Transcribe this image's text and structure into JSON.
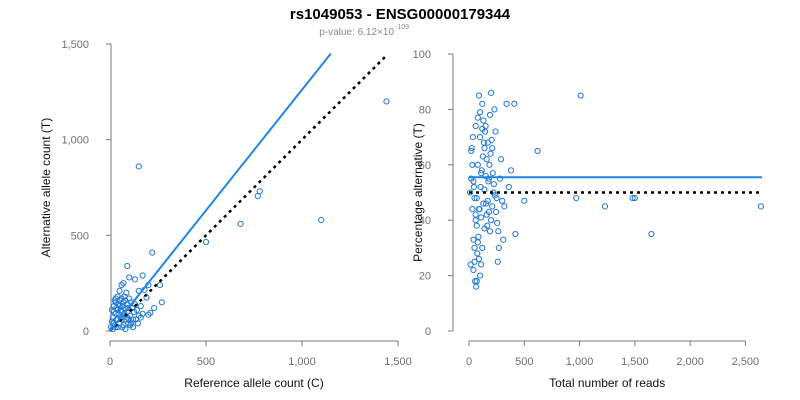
{
  "title_main": "rs1049053 - ENSG00000179344",
  "subtitle": {
    "prefix": "p-value: 6.12×10",
    "exponent": "-109"
  },
  "chart_data": [
    {
      "type": "scatter",
      "xlabel": "Reference allele count (C)",
      "ylabel": "Alternative allele count (T)",
      "xlim": [
        0,
        1500
      ],
      "ylim": [
        0,
        1500
      ],
      "x_ticks": [
        0,
        500,
        1000,
        1500
      ],
      "x_tick_labels": [
        "0",
        "500",
        "1,000",
        "1,500"
      ],
      "y_ticks": [
        0,
        500,
        1000,
        1500
      ],
      "y_tick_labels": [
        "0",
        "500",
        "1,000",
        "1,500"
      ],
      "grid": false,
      "points_color": "#1f78d8",
      "fit_line": {
        "x": [
          0,
          1150
        ],
        "y": [
          0,
          1450
        ],
        "color": "#1f86e6"
      },
      "reference_line": {
        "x": [
          0,
          1440
        ],
        "y": [
          0,
          1440
        ],
        "color": "#000000",
        "style": "dotted"
      },
      "points": [
        [
          1440,
          1200
        ],
        [
          1100,
          580
        ],
        [
          780,
          730
        ],
        [
          770,
          705
        ],
        [
          680,
          560
        ],
        [
          500,
          465
        ],
        [
          150,
          860
        ],
        [
          220,
          410
        ],
        [
          260,
          240
        ],
        [
          270,
          150
        ],
        [
          230,
          120
        ],
        [
          210,
          95
        ],
        [
          200,
          85
        ],
        [
          200,
          240
        ],
        [
          190,
          175
        ],
        [
          170,
          290
        ],
        [
          180,
          215
        ],
        [
          150,
          210
        ],
        [
          130,
          270
        ],
        [
          100,
          280
        ],
        [
          90,
          340
        ],
        [
          70,
          250
        ],
        [
          60,
          240
        ],
        [
          50,
          210
        ],
        [
          110,
          150
        ],
        [
          90,
          140
        ],
        [
          80,
          160
        ],
        [
          60,
          170
        ],
        [
          40,
          180
        ],
        [
          30,
          150
        ],
        [
          20,
          100
        ],
        [
          10,
          50
        ],
        [
          5,
          20
        ],
        [
          15,
          10
        ],
        [
          25,
          30
        ],
        [
          35,
          60
        ],
        [
          45,
          90
        ],
        [
          55,
          110
        ],
        [
          65,
          130
        ],
        [
          75,
          90
        ],
        [
          85,
          60
        ],
        [
          95,
          40
        ],
        [
          105,
          80
        ],
        [
          115,
          120
        ],
        [
          125,
          100
        ],
        [
          135,
          60
        ],
        [
          145,
          40
        ],
        [
          160,
          130
        ],
        [
          170,
          90
        ],
        [
          40,
          20
        ],
        [
          50,
          40
        ],
        [
          60,
          60
        ],
        [
          70,
          30
        ],
        [
          80,
          10
        ],
        [
          90,
          100
        ],
        [
          100,
          60
        ],
        [
          30,
          90
        ],
        [
          20,
          130
        ],
        [
          15,
          70
        ],
        [
          25,
          160
        ],
        [
          35,
          120
        ],
        [
          45,
          140
        ],
        [
          55,
          70
        ],
        [
          65,
          20
        ],
        [
          75,
          180
        ],
        [
          85,
          200
        ],
        [
          95,
          120
        ],
        [
          105,
          30
        ],
        [
          120,
          60
        ],
        [
          140,
          110
        ],
        [
          160,
          70
        ],
        [
          20,
          40
        ],
        [
          10,
          110
        ],
        [
          30,
          20
        ],
        [
          40,
          60
        ],
        [
          50,
          130
        ],
        [
          60,
          100
        ],
        [
          70,
          150
        ],
        [
          80,
          120
        ],
        [
          90,
          70
        ],
        [
          100,
          170
        ],
        [
          110,
          40
        ],
        [
          120,
          20
        ],
        [
          130,
          140
        ],
        [
          150,
          80
        ],
        [
          30,
          170
        ],
        [
          40,
          110
        ],
        [
          50,
          160
        ]
      ]
    },
    {
      "type": "scatter",
      "xlabel": "Total number of reads",
      "ylabel": "Percentage alternative (T)",
      "xlim": [
        0,
        2650
      ],
      "ylim": [
        0,
        100
      ],
      "x_ticks": [
        0,
        500,
        1000,
        1500,
        2000,
        2500
      ],
      "x_tick_labels": [
        "0",
        "500",
        "1,000",
        "1,500",
        "2,000",
        "2,500"
      ],
      "y_ticks": [
        0,
        20,
        40,
        60,
        80,
        100
      ],
      "y_tick_labels": [
        "0",
        "20",
        "40",
        "60",
        "80",
        "100"
      ],
      "grid": false,
      "points_color": "#1f78d8",
      "fit_line": {
        "x": [
          0,
          2650
        ],
        "y": [
          55.5,
          55.5
        ],
        "color": "#1f86e6"
      },
      "reference_line": {
        "x": [
          0,
          2650
        ],
        "y": [
          50,
          50
        ],
        "color": "#000000",
        "style": "dotted"
      },
      "points": [
        [
          2640,
          45
        ],
        [
          1650,
          35
        ],
        [
          1500,
          48
        ],
        [
          1480,
          48
        ],
        [
          1230,
          45
        ],
        [
          1010,
          85
        ],
        [
          970,
          48
        ],
        [
          620,
          65
        ],
        [
          500,
          47
        ],
        [
          420,
          35
        ],
        [
          410,
          82
        ],
        [
          380,
          58
        ],
        [
          360,
          52
        ],
        [
          340,
          82
        ],
        [
          320,
          45
        ],
        [
          310,
          33
        ],
        [
          300,
          47
        ],
        [
          290,
          62
        ],
        [
          280,
          55
        ],
        [
          270,
          30
        ],
        [
          260,
          25
        ],
        [
          250,
          48
        ],
        [
          240,
          72
        ],
        [
          230,
          80
        ],
        [
          220,
          50
        ],
        [
          210,
          66
        ],
        [
          200,
          86
        ],
        [
          190,
          78
        ],
        [
          180,
          55
        ],
        [
          170,
          68
        ],
        [
          160,
          42
        ],
        [
          150,
          74
        ],
        [
          140,
          37
        ],
        [
          130,
          76
        ],
        [
          120,
          82
        ],
        [
          110,
          57
        ],
        [
          100,
          70
        ],
        [
          90,
          85
        ],
        [
          80,
          60
        ],
        [
          70,
          48
        ],
        [
          60,
          40
        ],
        [
          50,
          30
        ],
        [
          40,
          22
        ],
        [
          30,
          44
        ],
        [
          20,
          55
        ],
        [
          10,
          50
        ],
        [
          15,
          24
        ],
        [
          25,
          66
        ],
        [
          35,
          70
        ],
        [
          45,
          52
        ],
        [
          55,
          18
        ],
        [
          65,
          16
        ],
        [
          75,
          28
        ],
        [
          85,
          34
        ],
        [
          95,
          44
        ],
        [
          105,
          52
        ],
        [
          115,
          58
        ],
        [
          125,
          63
        ],
        [
          135,
          68
        ],
        [
          145,
          72
        ],
        [
          155,
          46
        ],
        [
          165,
          38
        ],
        [
          175,
          54
        ],
        [
          185,
          60
        ],
        [
          195,
          64
        ],
        [
          205,
          69
        ],
        [
          215,
          57
        ],
        [
          225,
          53
        ],
        [
          235,
          49
        ],
        [
          245,
          43
        ],
        [
          255,
          39
        ],
        [
          265,
          36
        ],
        [
          20,
          65
        ],
        [
          30,
          60
        ],
        [
          40,
          54
        ],
        [
          50,
          48
        ],
        [
          60,
          42
        ],
        [
          70,
          38
        ],
        [
          80,
          32
        ],
        [
          90,
          26
        ],
        [
          100,
          20
        ],
        [
          110,
          24
        ],
        [
          120,
          30
        ],
        [
          130,
          46
        ],
        [
          140,
          51
        ],
        [
          150,
          56
        ],
        [
          160,
          62
        ],
        [
          170,
          47
        ],
        [
          180,
          43
        ],
        [
          190,
          36
        ],
        [
          200,
          40
        ],
        [
          210,
          45
        ],
        [
          60,
          74
        ],
        [
          80,
          77
        ],
        [
          100,
          79
        ],
        [
          120,
          73
        ],
        [
          140,
          66
        ],
        [
          40,
          33
        ],
        [
          50,
          25
        ],
        [
          70,
          18
        ],
        [
          90,
          44
        ],
        [
          110,
          41
        ]
      ]
    }
  ]
}
